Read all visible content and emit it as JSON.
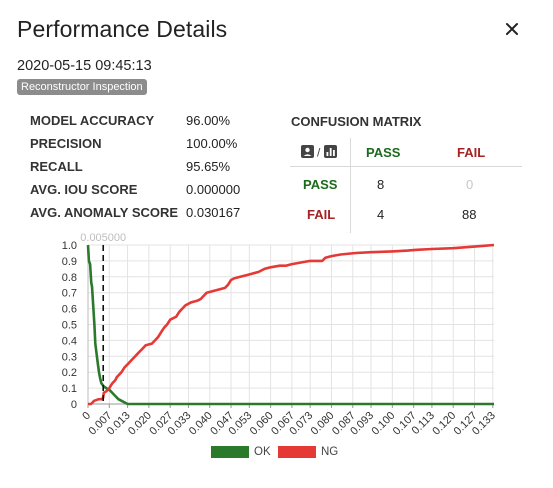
{
  "dialog": {
    "title": "Performance Details",
    "timestamp": "2020-05-15 09:45:13",
    "badge": "Reconstructor Inspection",
    "close_icon": "close-icon"
  },
  "metrics": [
    {
      "label": "MODEL ACCURACY",
      "value": "96.00%"
    },
    {
      "label": "PRECISION",
      "value": "100.00%"
    },
    {
      "label": "RECALL",
      "value": "95.65%"
    },
    {
      "label": "AVG. IOU SCORE",
      "value": "0.000000"
    },
    {
      "label": "AVG. ANOMALY SCORE",
      "value": "0.030167"
    }
  ],
  "confusion_matrix": {
    "title": "CONFUSION MATRIX",
    "header_icons": [
      "image-icon",
      "chart-icon"
    ],
    "header_separator": "/",
    "columns": [
      "PASS",
      "FAIL"
    ],
    "rows": [
      {
        "label": "PASS",
        "values": [
          "8",
          "0"
        ]
      },
      {
        "label": "FAIL",
        "values": [
          "4",
          "88"
        ]
      }
    ],
    "colors": {
      "pass": "#1c6a1c",
      "fail": "#a52222",
      "zero": "#c7c7c7"
    }
  },
  "chart_data": {
    "type": "line",
    "threshold": {
      "x": 0.005,
      "label": "0.005000"
    },
    "x_ticks": [
      "0",
      "0.007",
      "0.013",
      "0.020",
      "0.027",
      "0.033",
      "0.040",
      "0.047",
      "0.053",
      "0.060",
      "0.067",
      "0.073",
      "0.080",
      "0.087",
      "0.093",
      "0.100",
      "0.107",
      "0.113",
      "0.120",
      "0.127",
      "0.133"
    ],
    "y_ticks": [
      "0",
      "0.1",
      "0.2",
      "0.3",
      "0.4",
      "0.5",
      "0.6",
      "0.7",
      "0.8",
      "0.9",
      "1.0"
    ],
    "xlim": [
      0,
      0.1334
    ],
    "ylim": [
      0,
      1
    ],
    "grid": true,
    "legend_position": "bottom",
    "series": [
      {
        "name": "OK",
        "color": "#2b7a2b",
        "points": [
          [
            0,
            1.0
          ],
          [
            0.0003,
            0.9
          ],
          [
            0.0007,
            0.88
          ],
          [
            0.0009,
            0.82
          ],
          [
            0.0011,
            0.76
          ],
          [
            0.0013,
            0.74
          ],
          [
            0.0017,
            0.62
          ],
          [
            0.0021,
            0.5
          ],
          [
            0.0024,
            0.38
          ],
          [
            0.0028,
            0.32
          ],
          [
            0.0032,
            0.26
          ],
          [
            0.0036,
            0.2
          ],
          [
            0.004,
            0.16
          ],
          [
            0.0044,
            0.13
          ],
          [
            0.0048,
            0.12
          ],
          [
            0.0052,
            0.11
          ],
          [
            0.006,
            0.1
          ],
          [
            0.007,
            0.09
          ],
          [
            0.008,
            0.07
          ],
          [
            0.009,
            0.05
          ],
          [
            0.01,
            0.03
          ],
          [
            0.011,
            0.02
          ],
          [
            0.012,
            0.01
          ],
          [
            0.013,
            0.0
          ],
          [
            0.1334,
            0.0
          ]
        ]
      },
      {
        "name": "NG",
        "color": "#e53935",
        "points": [
          [
            0,
            0.0
          ],
          [
            0.001,
            0.0
          ],
          [
            0.0015,
            0.01
          ],
          [
            0.002,
            0.02
          ],
          [
            0.0035,
            0.03
          ],
          [
            0.0045,
            0.03
          ],
          [
            0.005,
            0.04
          ],
          [
            0.0052,
            0.07
          ],
          [
            0.006,
            0.08
          ],
          [
            0.007,
            0.1
          ],
          [
            0.008,
            0.13
          ],
          [
            0.009,
            0.15
          ],
          [
            0.0095,
            0.17
          ],
          [
            0.011,
            0.2
          ],
          [
            0.012,
            0.23
          ],
          [
            0.013,
            0.25
          ],
          [
            0.014,
            0.27
          ],
          [
            0.015,
            0.29
          ],
          [
            0.016,
            0.31
          ],
          [
            0.017,
            0.33
          ],
          [
            0.018,
            0.35
          ],
          [
            0.019,
            0.37
          ],
          [
            0.021,
            0.38
          ],
          [
            0.022,
            0.4
          ],
          [
            0.023,
            0.42
          ],
          [
            0.024,
            0.45
          ],
          [
            0.025,
            0.48
          ],
          [
            0.026,
            0.5
          ],
          [
            0.027,
            0.53
          ],
          [
            0.029,
            0.55
          ],
          [
            0.03,
            0.58
          ],
          [
            0.031,
            0.6
          ],
          [
            0.032,
            0.62
          ],
          [
            0.034,
            0.64
          ],
          [
            0.036,
            0.65
          ],
          [
            0.037,
            0.66
          ],
          [
            0.038,
            0.68
          ],
          [
            0.039,
            0.7
          ],
          [
            0.041,
            0.71
          ],
          [
            0.043,
            0.72
          ],
          [
            0.045,
            0.73
          ],
          [
            0.046,
            0.75
          ],
          [
            0.047,
            0.78
          ],
          [
            0.048,
            0.79
          ],
          [
            0.05,
            0.8
          ],
          [
            0.052,
            0.81
          ],
          [
            0.054,
            0.82
          ],
          [
            0.056,
            0.83
          ],
          [
            0.058,
            0.85
          ],
          [
            0.06,
            0.86
          ],
          [
            0.063,
            0.87
          ],
          [
            0.065,
            0.87
          ],
          [
            0.067,
            0.88
          ],
          [
            0.07,
            0.89
          ],
          [
            0.073,
            0.9
          ],
          [
            0.077,
            0.9
          ],
          [
            0.078,
            0.92
          ],
          [
            0.08,
            0.93
          ],
          [
            0.083,
            0.94
          ],
          [
            0.088,
            0.95
          ],
          [
            0.093,
            0.955
          ],
          [
            0.1,
            0.96
          ],
          [
            0.105,
            0.965
          ],
          [
            0.108,
            0.97
          ],
          [
            0.113,
            0.975
          ],
          [
            0.12,
            0.98
          ],
          [
            0.127,
            0.99
          ],
          [
            0.13,
            0.995
          ],
          [
            0.1334,
            1.0
          ]
        ]
      }
    ]
  }
}
